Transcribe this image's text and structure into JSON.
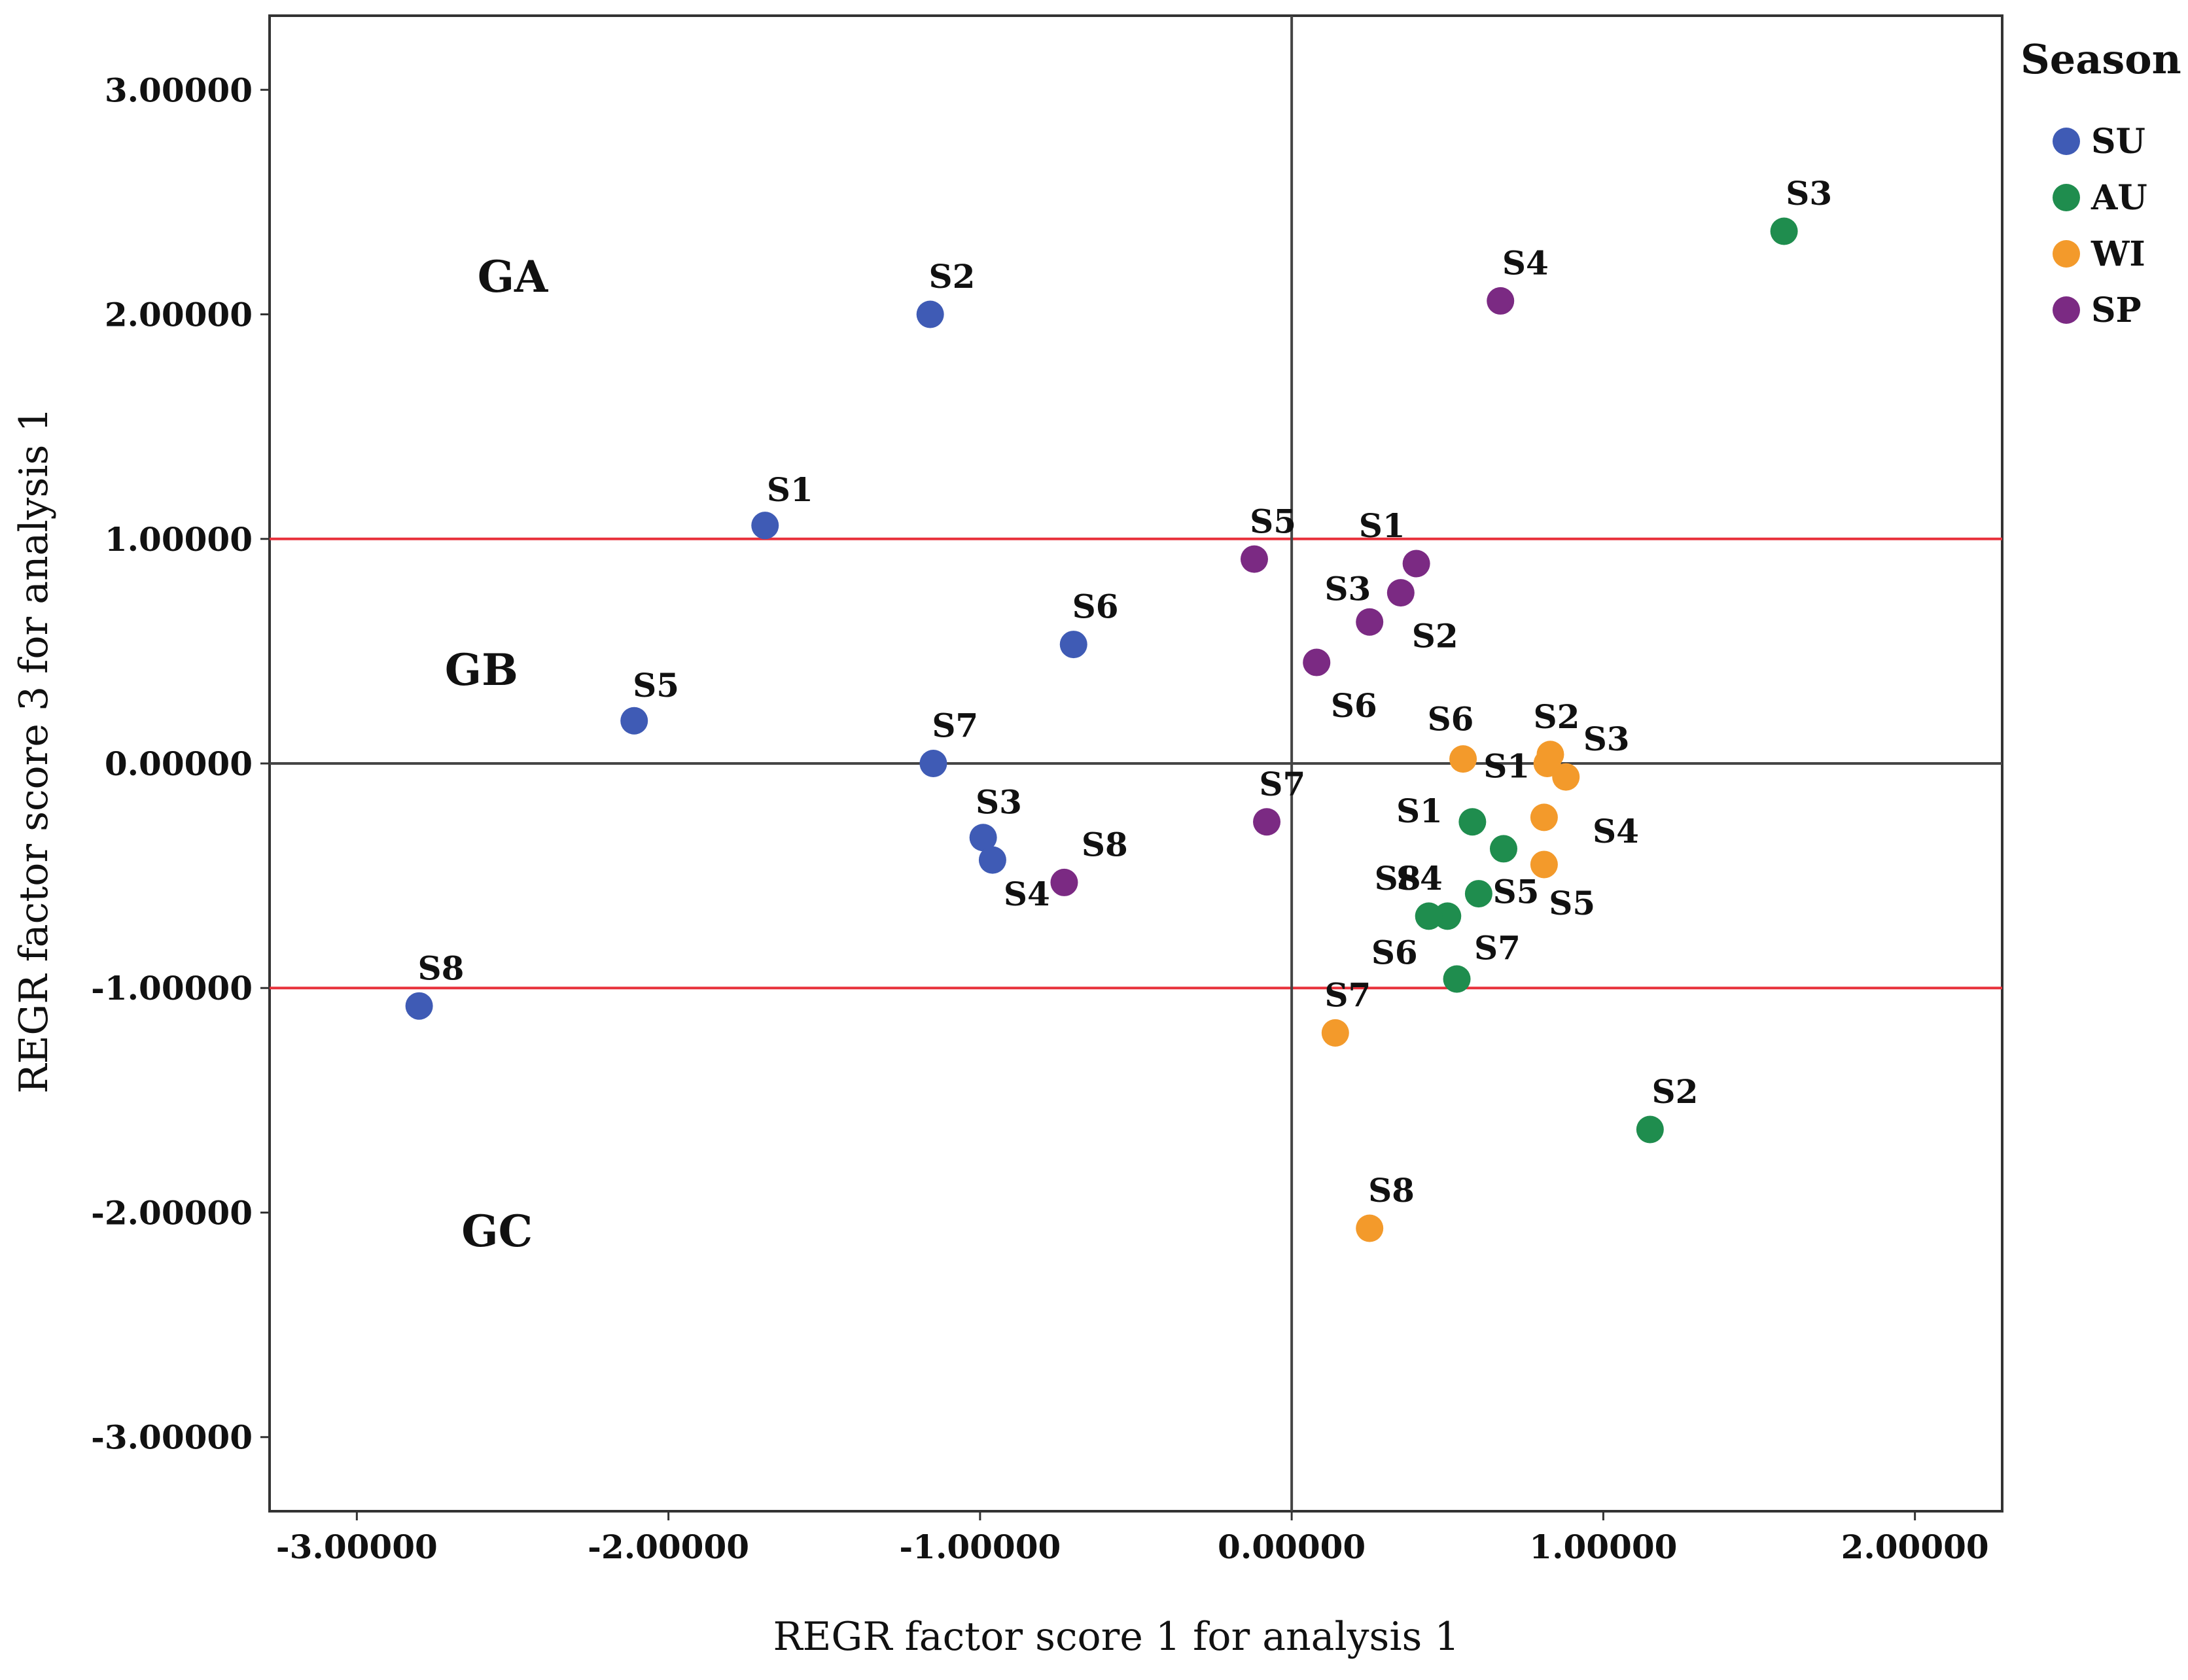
{
  "chart_data": {
    "type": "scatter",
    "xlabel": "REGR factor score   1 for analysis 1",
    "ylabel": "REGR factor score   3 for analysis 1",
    "xlim": [
      -3.28,
      2.28
    ],
    "ylim": [
      -3.33,
      3.33
    ],
    "x_ticks": [
      {
        "value": -3,
        "label": "-3.00000"
      },
      {
        "value": -2,
        "label": "-2.00000"
      },
      {
        "value": -1,
        "label": "-1.00000"
      },
      {
        "value": 0,
        "label": "0.00000"
      },
      {
        "value": 1,
        "label": "1.00000"
      },
      {
        "value": 2,
        "label": "2.00000"
      }
    ],
    "y_ticks": [
      {
        "value": 3,
        "label": "3.00000"
      },
      {
        "value": 2,
        "label": "2.00000"
      },
      {
        "value": 1,
        "label": "1.00000"
      },
      {
        "value": 0,
        "label": "0.00000"
      },
      {
        "value": -1,
        "label": "-1.00000"
      },
      {
        "value": -2,
        "label": "-2.00000"
      },
      {
        "value": -3,
        "label": "-3.00000"
      }
    ],
    "reference_lines": [
      {
        "axis": "y",
        "value": 1,
        "color": "#e8313b"
      },
      {
        "axis": "y",
        "value": -1,
        "color": "#e8313b"
      },
      {
        "axis": "y",
        "value": 0,
        "color": "#444444"
      },
      {
        "axis": "x",
        "value": 0,
        "color": "#444444"
      }
    ],
    "region_labels": [
      {
        "text": "GA",
        "x": -2.5,
        "y": 2.1
      },
      {
        "text": "GB",
        "x": -2.6,
        "y": 0.35
      },
      {
        "text": "GC",
        "x": -2.55,
        "y": -2.15
      }
    ],
    "legend": {
      "title": "Season",
      "position": "top-right"
    },
    "series": [
      {
        "name": "SU",
        "color": "#3f5bb5",
        "points": [
          {
            "label": "S1",
            "x": -1.69,
            "y": 1.06,
            "lx": -1.61,
            "ly": 1.22
          },
          {
            "label": "S2",
            "x": -1.16,
            "y": 2.0,
            "lx": -1.09,
            "ly": 2.17
          },
          {
            "label": "S3",
            "x": -0.99,
            "y": -0.33,
            "lx": -0.94,
            "ly": -0.17
          },
          {
            "label": "S4",
            "x": -0.96,
            "y": -0.43,
            "lx": -0.85,
            "ly": -0.58
          },
          {
            "label": "S5",
            "x": -2.11,
            "y": 0.19,
            "lx": -2.04,
            "ly": 0.35
          },
          {
            "label": "S6",
            "x": -0.7,
            "y": 0.53,
            "lx": -0.63,
            "ly": 0.7
          },
          {
            "label": "S7",
            "x": -1.15,
            "y": 0.0,
            "lx": -1.08,
            "ly": 0.17
          },
          {
            "label": "S8",
            "x": -2.8,
            "y": -1.08,
            "lx": -2.73,
            "ly": -0.91
          }
        ]
      },
      {
        "name": "AU",
        "color": "#1f8d4e",
        "points": [
          {
            "label": "S1",
            "x": 0.58,
            "y": -0.26,
            "lx": 0.41,
            "ly": -0.21
          },
          {
            "label": "S2",
            "x": 1.15,
            "y": -1.63,
            "lx": 1.23,
            "ly": -1.46
          },
          {
            "label": "S3",
            "x": 1.58,
            "y": 2.37,
            "lx": 1.66,
            "ly": 2.54
          },
          {
            "label": "S4",
            "x": 0.5,
            "y": -0.68,
            "lx": 0.41,
            "ly": -0.51
          },
          {
            "label": "S5",
            "x": 0.6,
            "y": -0.58,
            "lx": 0.72,
            "ly": -0.57
          },
          {
            "label": "S6",
            "x": 0.53,
            "y": -0.96,
            "lx": 0.33,
            "ly": -0.84
          },
          {
            "label": "S7",
            "x": 0.68,
            "y": -0.38,
            "lx": 0.66,
            "ly": -0.82
          },
          {
            "label": "S8",
            "x": 0.44,
            "y": -0.68,
            "lx": 0.34,
            "ly": -0.51
          }
        ]
      },
      {
        "name": "WI",
        "color": "#f39a2b",
        "points": [
          {
            "label": "S1",
            "x": 0.55,
            "y": 0.02,
            "lx": 0.69,
            "ly": -0.01
          },
          {
            "label": "S2",
            "x": 0.83,
            "y": 0.04,
            "lx": 0.85,
            "ly": 0.21
          },
          {
            "label": "S3",
            "x": 0.88,
            "y": -0.06,
            "lx": 1.01,
            "ly": 0.11
          },
          {
            "label": "S4",
            "x": 0.81,
            "y": -0.24,
            "lx": 1.04,
            "ly": -0.3
          },
          {
            "label": "S5",
            "x": 0.81,
            "y": -0.45,
            "lx": 0.9,
            "ly": -0.62
          },
          {
            "label": "S6",
            "x": 0.82,
            "y": 0.0,
            "lx": 0.51,
            "ly": 0.2
          },
          {
            "label": "S7",
            "x": 0.14,
            "y": -1.2,
            "lx": 0.18,
            "ly": -1.03
          },
          {
            "label": "S8",
            "x": 0.25,
            "y": -2.07,
            "lx": 0.32,
            "ly": -1.9
          }
        ]
      },
      {
        "name": "SP",
        "color": "#7b2a83",
        "points": [
          {
            "label": "S1",
            "x": 0.4,
            "y": 0.89,
            "lx": 0.29,
            "ly": 1.06
          },
          {
            "label": "S2",
            "x": 0.25,
            "y": 0.63,
            "lx": 0.46,
            "ly": 0.57
          },
          {
            "label": "S3",
            "x": 0.35,
            "y": 0.76,
            "lx": 0.18,
            "ly": 0.78
          },
          {
            "label": "S4",
            "x": 0.67,
            "y": 2.06,
            "lx": 0.75,
            "ly": 2.23
          },
          {
            "label": "S5",
            "x": -0.12,
            "y": 0.91,
            "lx": -0.06,
            "ly": 1.08
          },
          {
            "label": "S6",
            "x": 0.08,
            "y": 0.45,
            "lx": 0.2,
            "ly": 0.26
          },
          {
            "label": "S7",
            "x": -0.08,
            "y": -0.26,
            "lx": -0.03,
            "ly": -0.09
          },
          {
            "label": "S8",
            "x": -0.73,
            "y": -0.53,
            "lx": -0.6,
            "ly": -0.36
          }
        ]
      }
    ]
  }
}
